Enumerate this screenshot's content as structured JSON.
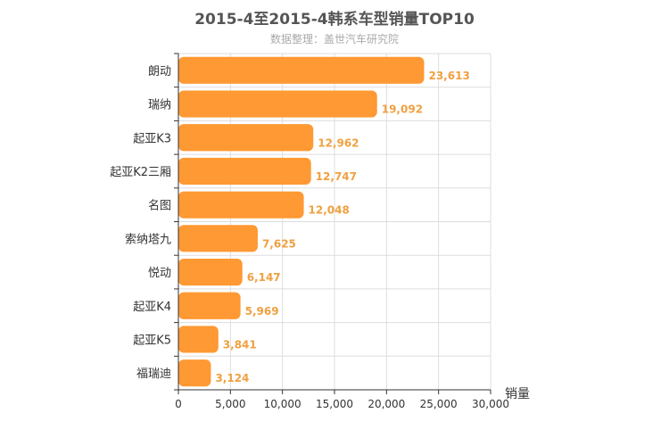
{
  "chart_data": {
    "type": "bar",
    "orientation": "horizontal",
    "title": "2015-4至2015-4韩系车型销量TOP10",
    "subtitle": "数据整理：盖世汽车研究院",
    "xlabel": "销量",
    "ylabel": "",
    "xlim": [
      0,
      30000
    ],
    "xticks": [
      "0",
      "5,000",
      "10,000",
      "15,000",
      "20,000",
      "25,000",
      "30,000"
    ],
    "categories": [
      "朗动",
      "瑞纳",
      "起亚K3",
      "起亚K2三厢",
      "名图",
      "索纳塔九",
      "悦动",
      "起亚K4",
      "起亚K5",
      "福瑞迪"
    ],
    "values": [
      23613,
      19092,
      12962,
      12747,
      12048,
      7625,
      6147,
      5969,
      3841,
      3124
    ],
    "value_labels": [
      "23,613",
      "19,092",
      "12,962",
      "12,747",
      "12,048",
      "7,625",
      "6,147",
      "5,969",
      "3,841",
      "3,124"
    ],
    "bar_color": "#ff9933",
    "grid": true
  }
}
